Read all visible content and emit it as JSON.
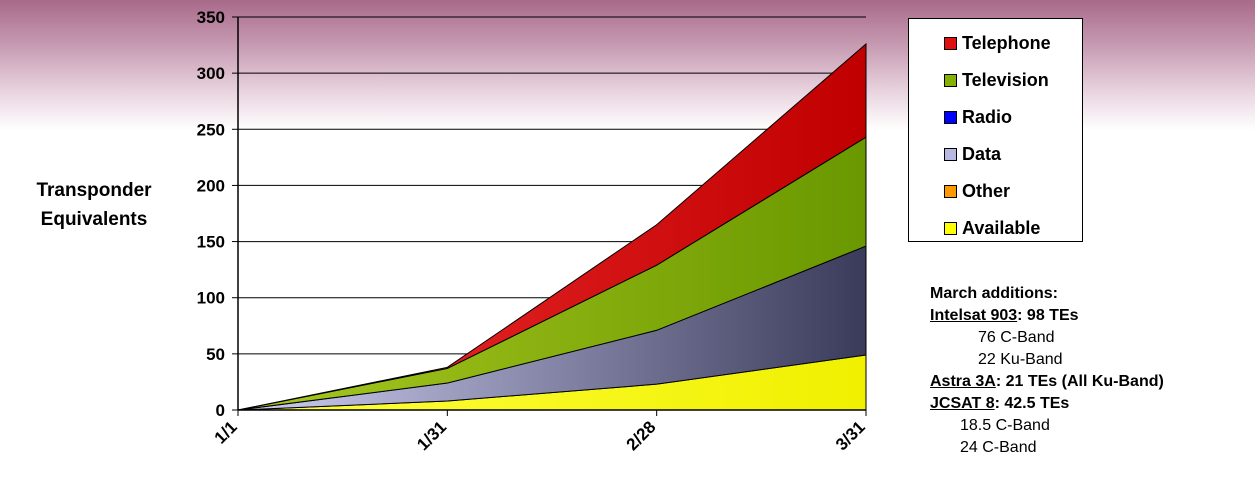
{
  "chart_data": {
    "type": "area",
    "stacked": true,
    "categories": [
      "1/1",
      "1/31",
      "2/28",
      "3/31"
    ],
    "ylabel": "Transponder Equivalents",
    "ylim": [
      0,
      350
    ],
    "yticks": [
      0,
      50,
      100,
      150,
      200,
      250,
      300,
      350
    ],
    "grid": true,
    "legend_position": "right",
    "series": [
      {
        "name": "Available",
        "color": "#ffff00",
        "values": [
          0,
          8,
          23,
          49
        ]
      },
      {
        "name": "Other",
        "color": "#ff9900",
        "values": [
          0,
          0,
          0,
          0
        ]
      },
      {
        "name": "Data",
        "color": "#b8b8e0",
        "values": [
          0,
          16,
          48,
          97
        ]
      },
      {
        "name": "Radio",
        "color": "#0000ff",
        "values": [
          0,
          0,
          0,
          0
        ]
      },
      {
        "name": "Television",
        "color": "#88b000",
        "values": [
          0,
          13,
          58,
          97
        ]
      },
      {
        "name": "Telephone",
        "color": "#e01010",
        "values": [
          0,
          1,
          36,
          83
        ]
      }
    ],
    "legend_order": [
      "Telephone",
      "Television",
      "Radio",
      "Data",
      "Other",
      "Available"
    ]
  },
  "notes": {
    "heading": "March additions:",
    "items": [
      {
        "name": "Intelsat 903",
        "detail": ": 98 TEs",
        "sub": [
          "76 C-Band",
          "22 Ku-Band"
        ]
      },
      {
        "name": "Astra 3A",
        "detail": ": 21 TEs (All Ku-Band)",
        "sub": []
      },
      {
        "name": "JCSAT 8",
        "detail": ": 42.5 TEs",
        "sub": [
          "18.5 C-Band",
          "24 C-Band"
        ]
      }
    ]
  }
}
